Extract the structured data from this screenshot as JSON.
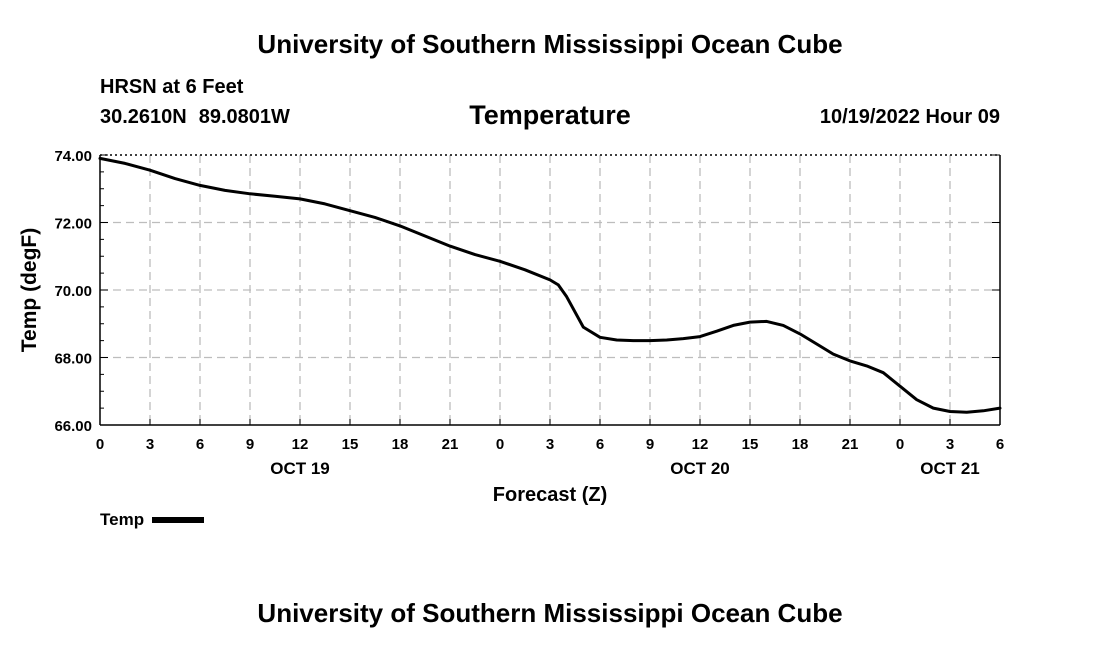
{
  "header": {
    "title": "University of Southern Mississippi Ocean Cube",
    "station": "HRSN at 6 Feet",
    "lat": "30.2610N",
    "lon": "89.0801W",
    "variable": "Temperature",
    "timestamp": "10/19/2022 Hour 09"
  },
  "footer": {
    "title": "University of Southern Mississippi Ocean Cube"
  },
  "legend": {
    "label": "Temp",
    "color": "#000000"
  },
  "chart_data": {
    "type": "line",
    "title": "Temperature",
    "xlabel": "Forecast (Z)",
    "ylabel": "Temp (degF)",
    "ylim": [
      66.0,
      74.0
    ],
    "yticks": [
      "74.00",
      "72.00",
      "70.00",
      "68.00",
      "66.00"
    ],
    "ytick_values": [
      74,
      72,
      70,
      68,
      66
    ],
    "xlim": [
      0,
      54
    ],
    "xtick_labels": [
      "0",
      "3",
      "6",
      "9",
      "12",
      "15",
      "18",
      "21",
      "0",
      "3",
      "6",
      "9",
      "12",
      "15",
      "18",
      "21",
      "0",
      "3",
      "6"
    ],
    "date_labels": [
      {
        "label": "OCT 19",
        "hour": 12
      },
      {
        "label": "OCT 20",
        "hour": 36
      },
      {
        "label": "OCT 21",
        "hour": 51
      }
    ],
    "grid": true,
    "series": [
      {
        "name": "Temp",
        "color": "#000000",
        "x": [
          0,
          1.5,
          3,
          4.5,
          6,
          7.5,
          9,
          10.5,
          12,
          13.5,
          15,
          16.5,
          18,
          19.5,
          21,
          22.5,
          24,
          25.5,
          27,
          27.5,
          28,
          29,
          30,
          31,
          32,
          33,
          34,
          35,
          36,
          37,
          38,
          39,
          40,
          41,
          42,
          43,
          44,
          45,
          46,
          47,
          48,
          49,
          50,
          51,
          52,
          53,
          54
        ],
        "values": [
          73.9,
          73.75,
          73.55,
          73.3,
          73.1,
          72.95,
          72.85,
          72.78,
          72.7,
          72.55,
          72.35,
          72.15,
          71.9,
          71.6,
          71.3,
          71.05,
          70.85,
          70.6,
          70.3,
          70.15,
          69.8,
          68.9,
          68.6,
          68.52,
          68.5,
          68.5,
          68.52,
          68.56,
          68.62,
          68.78,
          68.95,
          69.05,
          69.07,
          68.95,
          68.7,
          68.4,
          68.1,
          67.9,
          67.75,
          67.55,
          67.15,
          66.75,
          66.5,
          66.4,
          66.38,
          66.42,
          66.5
        ]
      }
    ]
  }
}
